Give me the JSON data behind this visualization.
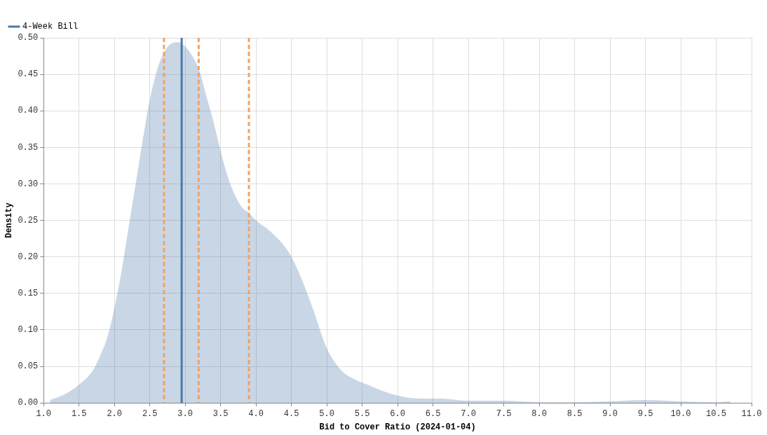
{
  "chart_data": {
    "type": "area",
    "xlabel": "Bid to Cover Ratio (2024-01-04)",
    "ylabel": "Density",
    "x": [
      1.09,
      1.3,
      1.5,
      1.7,
      1.8,
      1.9,
      2.0,
      2.1,
      2.2,
      2.3,
      2.4,
      2.5,
      2.6,
      2.7,
      2.8,
      2.9,
      3.0,
      3.1,
      3.2,
      3.3,
      3.4,
      3.5,
      3.6,
      3.7,
      3.8,
      3.9,
      4.0,
      4.2,
      4.4,
      4.5,
      4.6,
      4.8,
      5.0,
      5.2,
      5.4,
      5.6,
      5.8,
      6.0,
      6.3,
      6.6,
      7.0,
      7.5,
      8.0,
      8.5,
      9.0,
      9.5,
      10.0,
      10.5,
      10.7
    ],
    "series": [
      {
        "name": "4-Week Bill",
        "color": "#4c78a8",
        "values": [
          0.004,
          0.012,
          0.025,
          0.045,
          0.065,
          0.09,
          0.13,
          0.18,
          0.24,
          0.3,
          0.36,
          0.415,
          0.455,
          0.48,
          0.492,
          0.494,
          0.488,
          0.475,
          0.455,
          0.42,
          0.385,
          0.345,
          0.31,
          0.285,
          0.268,
          0.26,
          0.25,
          0.235,
          0.215,
          0.2,
          0.18,
          0.13,
          0.075,
          0.045,
          0.032,
          0.024,
          0.016,
          0.01,
          0.006,
          0.006,
          0.003,
          0.003,
          0.001,
          0.001,
          0.002,
          0.004,
          0.002,
          0.001,
          0.002
        ]
      }
    ],
    "ref_lines": [
      {
        "axis": "x",
        "value": 2.95,
        "color": "#4c78a8",
        "line_style": "solid"
      },
      {
        "axis": "x",
        "value": 2.7,
        "color": "#f4a261",
        "line_style": "dashed"
      },
      {
        "axis": "x",
        "value": 3.19,
        "color": "#f4a261",
        "line_style": "dashed"
      },
      {
        "axis": "x",
        "value": 3.9,
        "color": "#f4a261",
        "line_style": "dashed"
      }
    ],
    "xlim": [
      1.0,
      11.0
    ],
    "xticks": [
      {
        "value": 1,
        "label": "1.0"
      },
      1.5,
      {
        "value": 2,
        "label": "2.0"
      },
      2.5,
      {
        "value": 3,
        "label": "3.0"
      },
      3.5,
      {
        "value": 4,
        "label": "4.0"
      },
      4.5,
      {
        "value": 5,
        "label": "5.0"
      },
      5.5,
      {
        "value": 6,
        "label": "6.0"
      },
      6.5,
      {
        "value": 7,
        "label": "7.0"
      },
      7.5,
      {
        "value": 8,
        "label": "8.0"
      },
      8.5,
      {
        "value": 9,
        "label": "9.0"
      },
      9.5,
      {
        "value": 10,
        "label": "10.0"
      },
      10.5,
      {
        "value": 11,
        "label": "11.0"
      }
    ],
    "ylim": [
      0,
      0.5
    ],
    "yticks": [
      {
        "value": 0,
        "label": "0.00"
      },
      {
        "value": 0.05,
        "label": "0.05"
      },
      {
        "value": 0.1,
        "label": "0.10"
      },
      {
        "value": 0.15,
        "label": "0.15"
      },
      {
        "value": 0.2,
        "label": "0.20"
      },
      {
        "value": 0.25,
        "label": "0.25"
      },
      {
        "value": 0.3,
        "label": "0.30"
      },
      {
        "value": 0.35,
        "label": "0.35"
      },
      {
        "value": 0.4,
        "label": "0.40"
      },
      {
        "value": 0.45,
        "label": "0.45"
      },
      {
        "value": 0.5,
        "label": "0.50"
      }
    ],
    "grid": true,
    "legend": "top left",
    "marker": "none"
  }
}
